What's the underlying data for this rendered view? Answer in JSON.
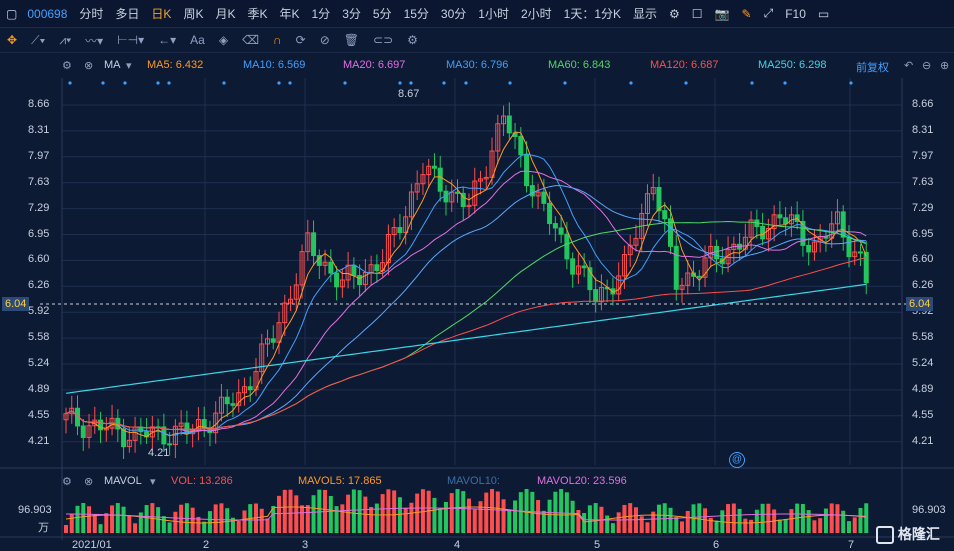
{
  "toolbar": {
    "code": "000698",
    "periods": [
      "分时",
      "多日",
      "日K",
      "周K",
      "月K",
      "季K",
      "年K",
      "1分",
      "3分",
      "5分",
      "15分",
      "30分",
      "1小时",
      "2小时"
    ],
    "active_period": "日K",
    "combo": "1天：1分K",
    "display": "显示",
    "f10": "F10"
  },
  "drawing_tools": {
    "text_tool": "Aa"
  },
  "ma_legend": {
    "label": "MA",
    "ma5": "MA5: 6.432",
    "ma10": "MA10: 6.569",
    "ma20": "MA20: 6.697",
    "ma30": "MA30: 6.796",
    "ma60": "MA60: 6.843",
    "ma120": "MA120: 6.687",
    "ma250": "MA250: 6.298",
    "adjust": "前复权",
    "colors": {
      "ma5": "#ff9a1e",
      "ma10": "#3da0ff",
      "ma20": "#e070e0",
      "ma30": "#3da0ff",
      "ma60": "#4cd964",
      "ma120": "#ff4d4d",
      "ma250": "#38d6e6"
    }
  },
  "price_axis": [
    "8.66",
    "8.31",
    "7.97",
    "7.63",
    "7.29",
    "6.95",
    "6.60",
    "6.26",
    "5.92",
    "5.58",
    "5.24",
    "4.89",
    "4.55",
    "4.21"
  ],
  "current_price": "6.04",
  "annotations": {
    "high": "8.67",
    "low": "4.21"
  },
  "volume_legend": {
    "label": "MAVOL",
    "vol": "VOL: 13.286",
    "mavol5": "MAVOL5: 17.865",
    "mavol10": "MAVOL10:",
    "mavol20": "MAVOL20: 23.596"
  },
  "volume_axis": {
    "top": "96.903",
    "unit": "万"
  },
  "x_labels": [
    "2021/01",
    "2",
    "3",
    "4",
    "5",
    "6",
    "7"
  ],
  "watermark": "格隆汇",
  "colors": {
    "up": "#ff4d4d",
    "down": "#22c55e",
    "accent": "#f5a623"
  }
}
